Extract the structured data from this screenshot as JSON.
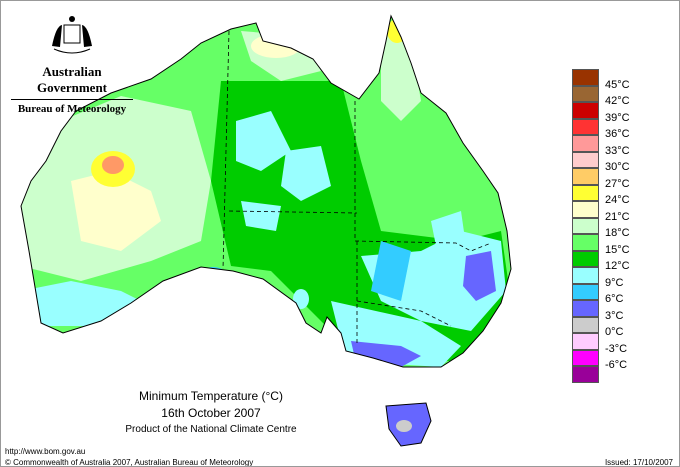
{
  "header": {
    "government": "Australian Government",
    "bureau": "Bureau of Meteorology"
  },
  "map": {
    "title": "Minimum Temperature (°C)",
    "date": "16th October 2007",
    "product": "Product of the National Climate Centre"
  },
  "legend": {
    "swatches": [
      {
        "color": "#993300"
      },
      {
        "color": "#996633"
      },
      {
        "color": "#cc0000"
      },
      {
        "color": "#ff3333"
      },
      {
        "color": "#ff9999"
      },
      {
        "color": "#ffcccc"
      },
      {
        "color": "#ffcc66"
      },
      {
        "color": "#ffff33"
      },
      {
        "color": "#ffffcc"
      },
      {
        "color": "#ccffcc"
      },
      {
        "color": "#66ff66"
      },
      {
        "color": "#00cc00"
      },
      {
        "color": "#99ffff"
      },
      {
        "color": "#33ccff"
      },
      {
        "color": "#6666ff"
      },
      {
        "color": "#cccccc"
      },
      {
        "color": "#ffccff"
      },
      {
        "color": "#ff00ff"
      },
      {
        "color": "#990099"
      }
    ],
    "labels": [
      "45°C",
      "42°C",
      "39°C",
      "36°C",
      "33°C",
      "30°C",
      "27°C",
      "24°C",
      "21°C",
      "18°C",
      "15°C",
      "12°C",
      "9°C",
      "6°C",
      "3°C",
      "0°C",
      "-3°C",
      "-6°C"
    ]
  },
  "footer": {
    "url": "http://www.bom.gov.au",
    "copyright": "© Commonwealth of Australia 2007, Australian Bureau of Meteorology",
    "issued": "Issued: 17/10/2007"
  }
}
